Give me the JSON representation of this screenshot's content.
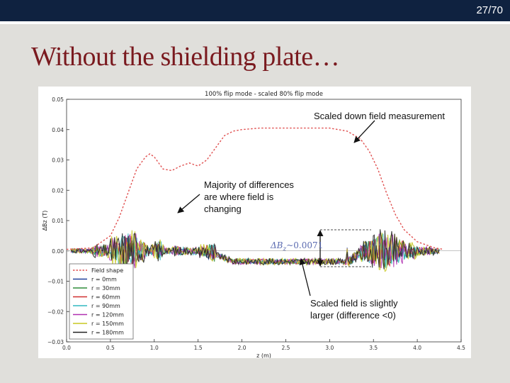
{
  "slide": {
    "number": "27/70",
    "title": "Without the shielding plate…"
  },
  "annotations": {
    "scaled_down": "Scaled down field measurement",
    "majority_line1": "Majority of differences",
    "majority_line2": "are where field is",
    "majority_line3": "changing",
    "slightly_line1": "Scaled field is slightly",
    "slightly_line2": "larger (difference <0)",
    "delta_label": "ΔB",
    "delta_sub": "z",
    "delta_value": "~0.0071"
  },
  "colors": {
    "topbar": "#0f2240",
    "title": "#7a1a1f",
    "slide_bg": "#e0dfdb"
  },
  "chart_data": {
    "type": "line",
    "title": "100% flip mode - scaled 80% flip mode",
    "xlabel": "z (m)",
    "ylabel": "ΔBz (T)",
    "xlim": [
      0.0,
      4.5
    ],
    "ylim": [
      -0.03,
      0.05
    ],
    "x_ticks": [
      "0.0",
      "0.5",
      "1.0",
      "1.5",
      "2.0",
      "2.5",
      "3.0",
      "3.5",
      "4.0",
      "4.5"
    ],
    "y_ticks": [
      "−0.03",
      "−0.02",
      "−0.01",
      "0.00",
      "0.01",
      "0.02",
      "0.03",
      "0.04",
      "0.05"
    ],
    "legend_position": "bottom-left",
    "field_shape": {
      "name": "Field shape",
      "color": "#e05050",
      "x": [
        0.0,
        0.3,
        0.5,
        0.6,
        0.7,
        0.8,
        0.9,
        0.95,
        1.0,
        1.1,
        1.2,
        1.3,
        1.4,
        1.5,
        1.6,
        1.7,
        1.8,
        1.9,
        2.0,
        2.2,
        2.5,
        2.8,
        3.0,
        3.2,
        3.35,
        3.45,
        3.55,
        3.65,
        3.75,
        3.85,
        4.0,
        4.2,
        4.3
      ],
      "y": [
        0.0005,
        0.001,
        0.005,
        0.011,
        0.019,
        0.027,
        0.031,
        0.032,
        0.031,
        0.027,
        0.0265,
        0.028,
        0.029,
        0.028,
        0.03,
        0.034,
        0.038,
        0.0395,
        0.04,
        0.0405,
        0.0405,
        0.0405,
        0.0405,
        0.0395,
        0.037,
        0.033,
        0.027,
        0.019,
        0.012,
        0.007,
        0.003,
        0.001,
        0.0005
      ]
    },
    "series": [
      {
        "name": "r = 0mm",
        "color": "#1f3f99",
        "seed": 3,
        "amp": 0.6
      },
      {
        "name": "r = 30mm",
        "color": "#2e8b3a",
        "seed": 7,
        "amp": 0.7
      },
      {
        "name": "r = 60mm",
        "color": "#d03030",
        "seed": 11,
        "amp": 0.75
      },
      {
        "name": "r = 90mm",
        "color": "#30b8c0",
        "seed": 17,
        "amp": 0.8
      },
      {
        "name": "r = 120mm",
        "color": "#b030b0",
        "seed": 23,
        "amp": 0.9
      },
      {
        "name": "r = 150mm",
        "color": "#c8c820",
        "seed": 29,
        "amp": 1.0
      },
      {
        "name": "r = 180mm",
        "color": "#222222",
        "seed": 31,
        "amp": 1.0
      }
    ]
  }
}
